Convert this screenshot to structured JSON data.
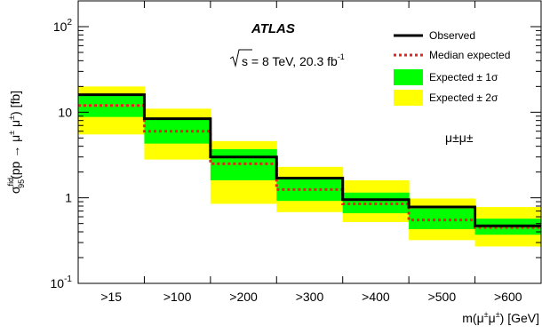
{
  "chart_data": {
    "type": "line",
    "chart_style": "step",
    "y_scale": "log",
    "ylim": [
      0.1,
      200
    ],
    "categories": [
      ">15",
      ">100",
      ">200",
      ">300",
      ">400",
      ">500",
      ">600"
    ],
    "y_ticks": [
      {
        "value": 0.1,
        "base": "10",
        "exp": "-1"
      },
      {
        "value": 1,
        "base": "1",
        "exp": ""
      },
      {
        "value": 10,
        "base": "10",
        "exp": ""
      },
      {
        "value": 100,
        "base": "10",
        "exp": "2"
      }
    ],
    "xlabel": "m(μ±μ±) [GeV]",
    "ylabel": "σ_95^fid(pp → μ± μ±) [fb]",
    "ylabel_parts": {
      "sigma": "σ",
      "sup": "fid",
      "sub": "95",
      "rest": "(pp → μ",
      "rest_sup": "±",
      "rest_mid": " μ",
      "rest_sup2": "±",
      "rest_end": ") [fb]"
    },
    "xlabel_parts": {
      "pre": "m(μ",
      "sup1": "±",
      "mid": "μ",
      "sup2": "±",
      "post": ") [GeV]"
    },
    "series": [
      {
        "name": "Observed",
        "color": "#000000",
        "style": "solid",
        "values": [
          16,
          8.4,
          3.0,
          1.7,
          0.95,
          0.78,
          0.47
        ]
      },
      {
        "name": "Median expected",
        "color": "#e8231d",
        "style": "dotted",
        "values": [
          12,
          6.0,
          2.5,
          1.25,
          0.85,
          0.55,
          0.45
        ]
      },
      {
        "name": "Expected ± 1σ",
        "color": "#00ff00",
        "style": "band",
        "lower": [
          8.8,
          4.3,
          1.6,
          0.92,
          0.66,
          0.43,
          0.37
        ],
        "upper": [
          16,
          8.4,
          3.7,
          1.75,
          1.15,
          0.75,
          0.57
        ]
      },
      {
        "name": "Expected ± 2σ",
        "color": "#ffff00",
        "style": "band",
        "lower": [
          5.5,
          2.8,
          0.85,
          0.68,
          0.52,
          0.32,
          0.27
        ],
        "upper": [
          20,
          11,
          4.6,
          2.3,
          1.6,
          0.98,
          0.78
        ]
      }
    ],
    "legend_position": "top-right",
    "annotations": {
      "experiment": "ATLAS",
      "sqrt_s": "s = 8 TeV, 20.3 fb",
      "lumi_exp": "-1",
      "channel": "μ±μ±"
    }
  }
}
